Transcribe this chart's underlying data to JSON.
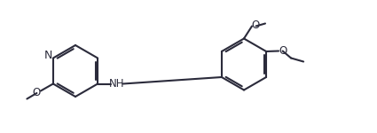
{
  "bg_color": "#ffffff",
  "line_color": "#2b2b3b",
  "text_color": "#2b2b3b",
  "line_width": 1.5,
  "font_size": 8.5,
  "figsize": [
    4.25,
    1.5
  ],
  "dpi": 100,
  "xlim": [
    0,
    8.5
  ],
  "ylim": [
    0,
    3.0
  ]
}
